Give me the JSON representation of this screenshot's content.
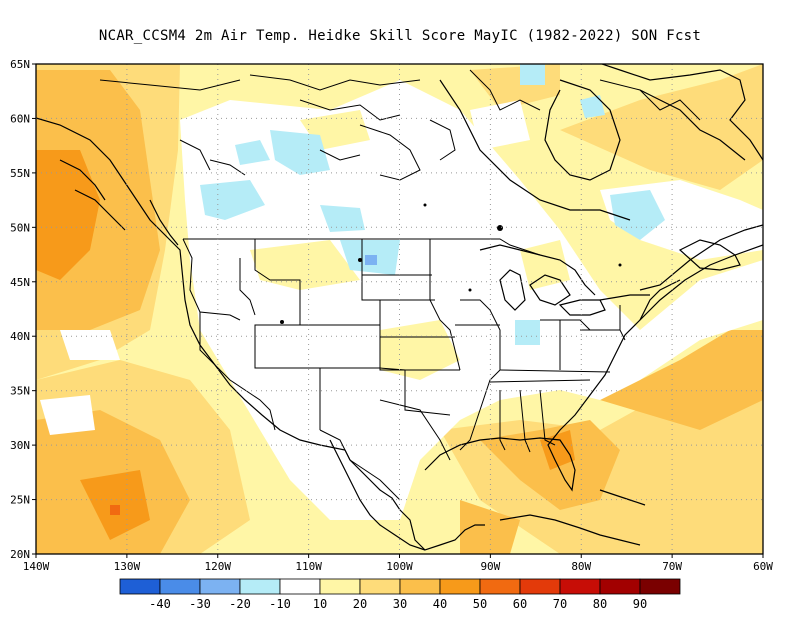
{
  "title": "NCAR_CCSM4  2m Air Temp. Heidke Skill Score MayIC (1982-2022) SON Fcst",
  "lat_labels": [
    "65N",
    "60N",
    "55N",
    "50N",
    "45N",
    "40N",
    "35N",
    "30N",
    "25N",
    "20N"
  ],
  "lon_labels": [
    "140W",
    "130W",
    "120W",
    "110W",
    "100W",
    "90W",
    "80W",
    "70W",
    "60W"
  ],
  "colorbar": {
    "colors": [
      "#1e5fd6",
      "#4a8ce8",
      "#7cb2f2",
      "#b5ecf7",
      "#ffffff",
      "#fff6a6",
      "#fedc7a",
      "#fbbf4b",
      "#f79a1a",
      "#f16a11",
      "#e33a0a",
      "#c70d06",
      "#a20000",
      "#7a0000"
    ],
    "labels": [
      "-40",
      "-30",
      "-20",
      "-10",
      "10",
      "20",
      "30",
      "40",
      "50",
      "60",
      "70",
      "80",
      "90"
    ]
  },
  "map": {
    "extent": {
      "lon": [
        -140,
        -60
      ],
      "lat": [
        20,
        65
      ]
    },
    "background": "#fff6a6",
    "grid": "dotted"
  }
}
